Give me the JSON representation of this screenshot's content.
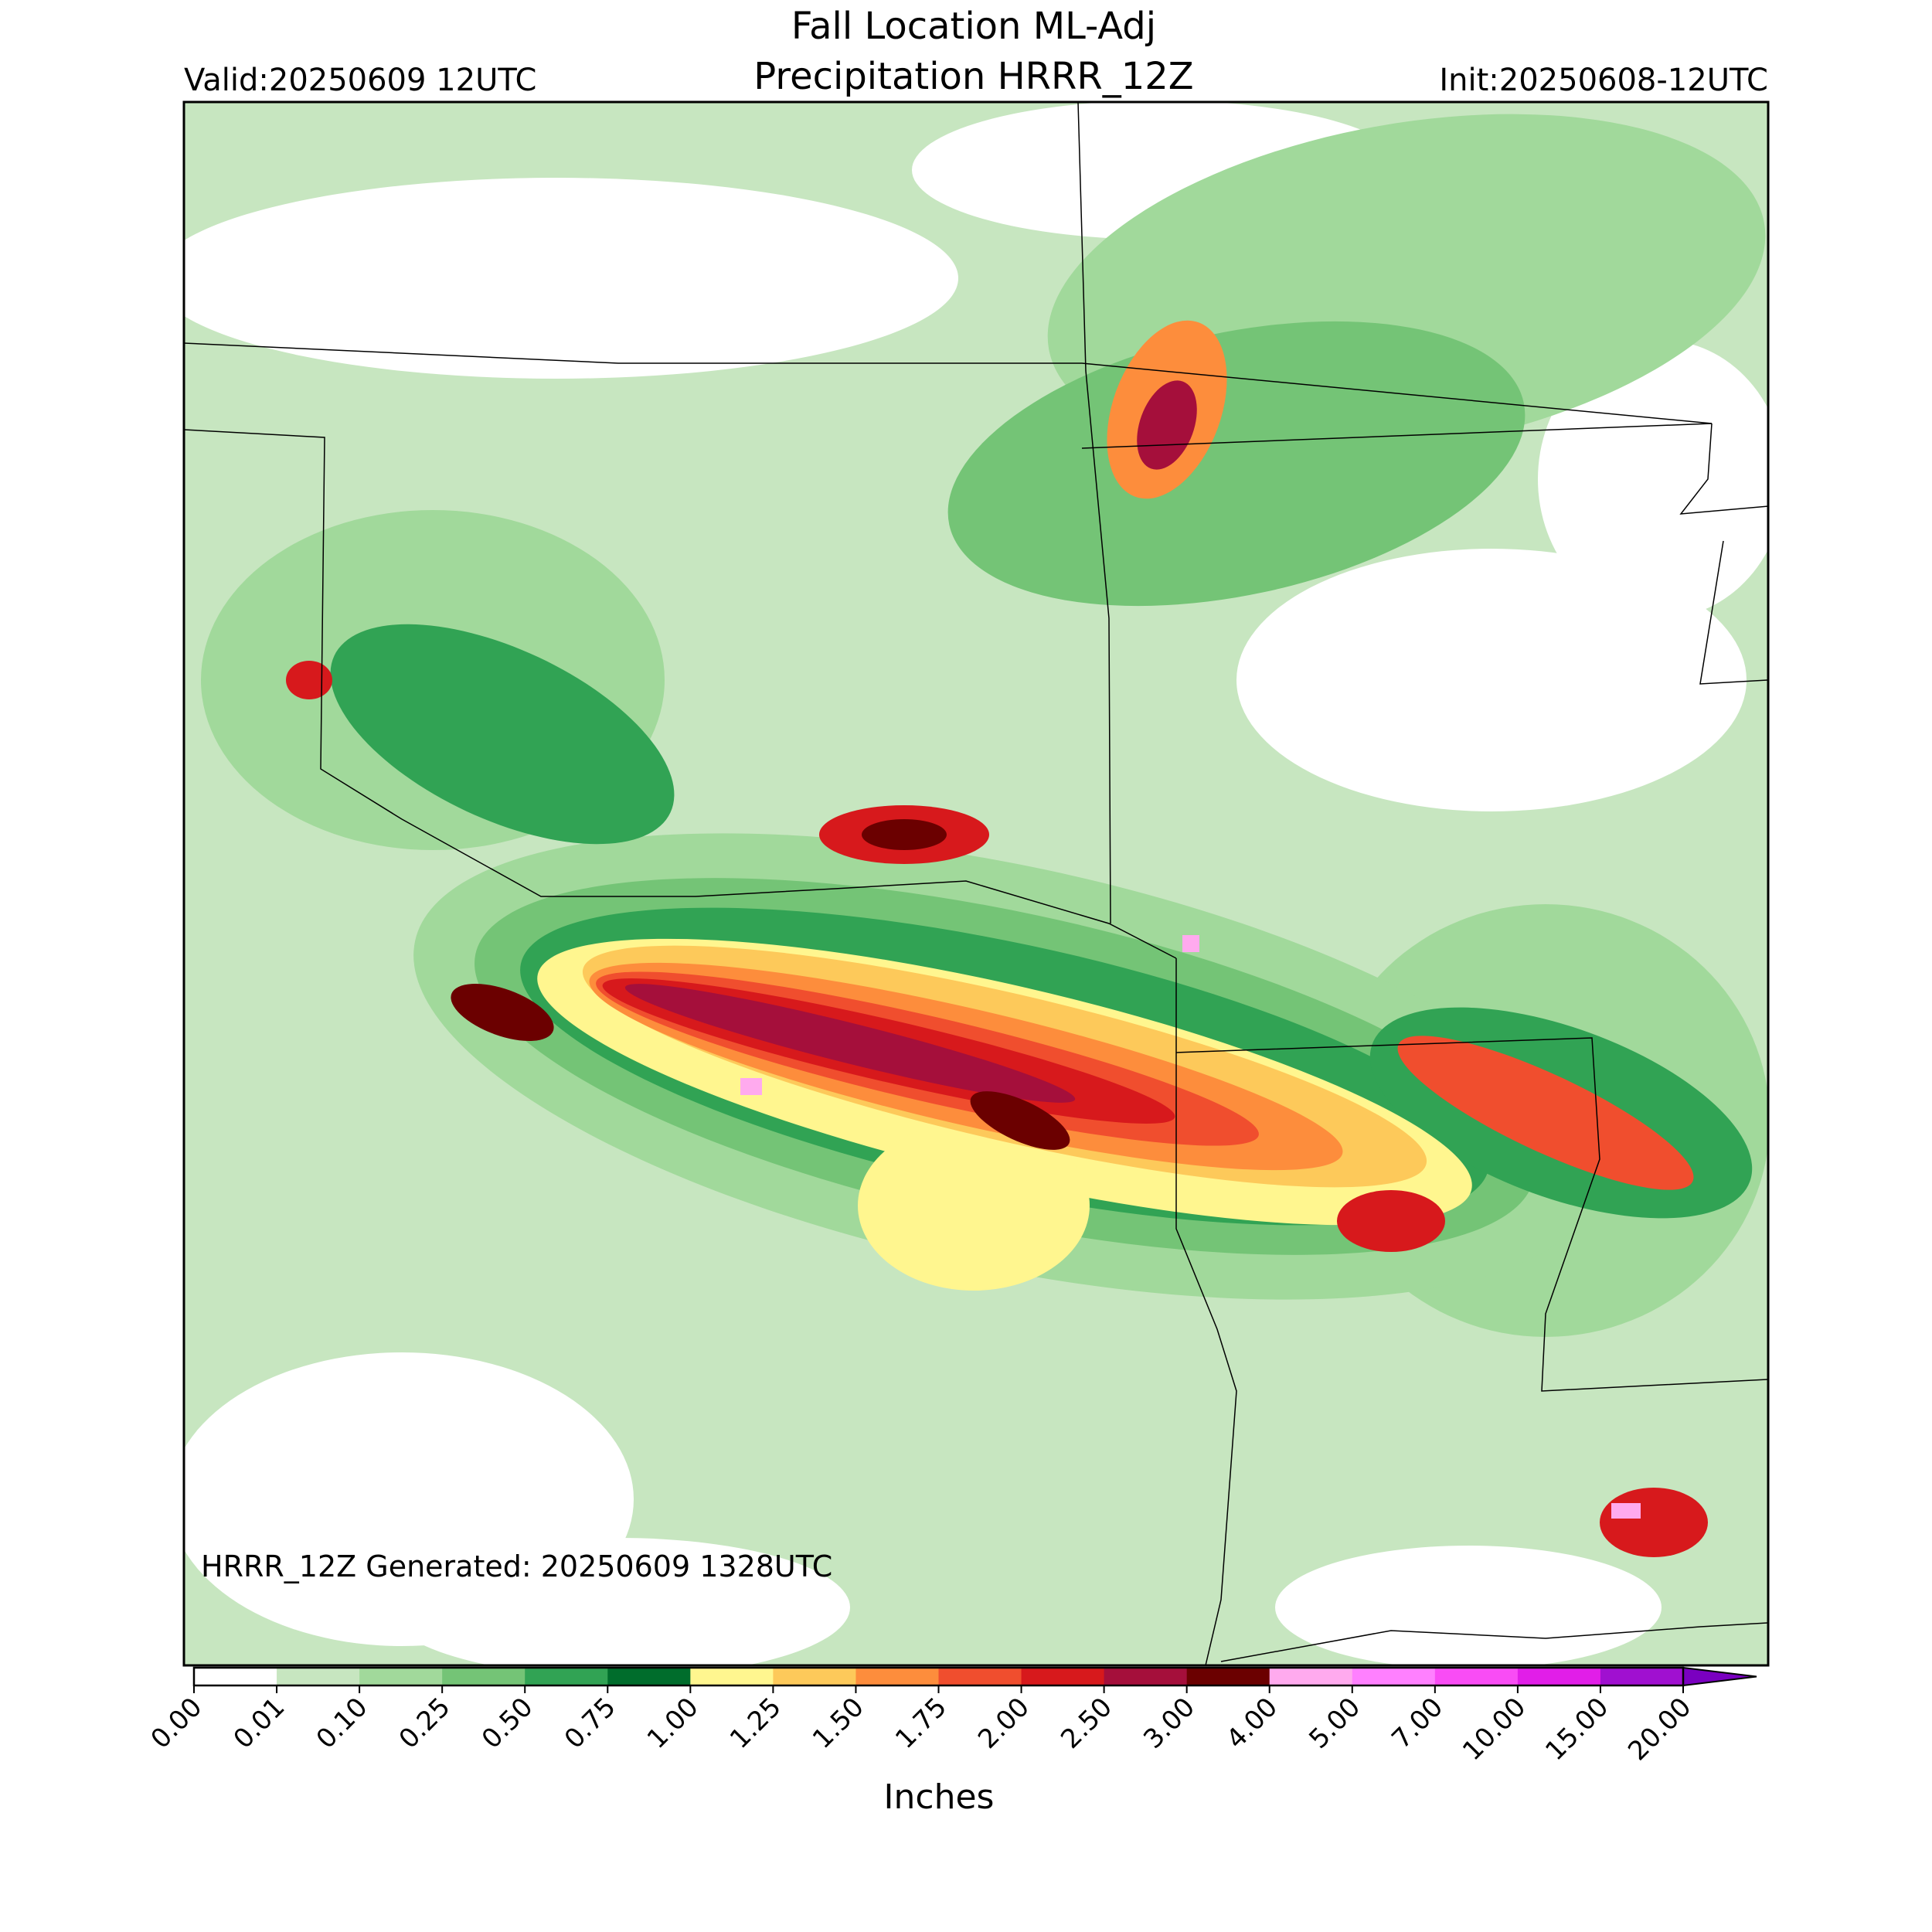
{
  "header": {
    "title": [
      "Fall Location ML-Adj",
      "Precipitation HRRR_12Z"
    ],
    "valid": "Valid:20250609 12UTC",
    "init": "Init:20250608-12UTC"
  },
  "note": "HRRR_12Z Generated: 20250609 1328UTC",
  "colorbar": {
    "label": "Inches",
    "ticks": [
      {
        "value": 0,
        "label": "0.00"
      },
      {
        "value": 0.01,
        "label": "0.01"
      },
      {
        "value": 0.1,
        "label": "0.10"
      },
      {
        "value": 0.25,
        "label": "0.25"
      },
      {
        "value": 0.5,
        "label": "0.50"
      },
      {
        "value": 0.75,
        "label": "0.75"
      },
      {
        "value": 1,
        "label": "1.00"
      },
      {
        "value": 1.25,
        "label": "1.25"
      },
      {
        "value": 1.5,
        "label": "1.50"
      },
      {
        "value": 1.75,
        "label": "1.75"
      },
      {
        "value": 2,
        "label": "2.00"
      },
      {
        "value": 2.5,
        "label": "2.50"
      },
      {
        "value": 3,
        "label": "3.00"
      },
      {
        "value": 4,
        "label": "4.00"
      },
      {
        "value": 5,
        "label": "5.00"
      },
      {
        "value": 7,
        "label": "7.00"
      },
      {
        "value": 10,
        "label": "10.00"
      },
      {
        "value": 15,
        "label": "15.00"
      },
      {
        "value": 20,
        "label": "20.00"
      }
    ],
    "colors": [
      "#ffffff",
      "#c7e6c0",
      "#a1d99b",
      "#74c476",
      "#31a354",
      "#006d2c",
      "#fff68f",
      "#fdc95a",
      "#fd8d3c",
      "#f04e2e",
      "#d7191c",
      "#a50f3b",
      "#6b0000",
      "#ffaaee",
      "#ff80ff",
      "#f94cf5",
      "#e11ee8",
      "#a010d0"
    ],
    "extend_color": "#7a00c0"
  }
}
